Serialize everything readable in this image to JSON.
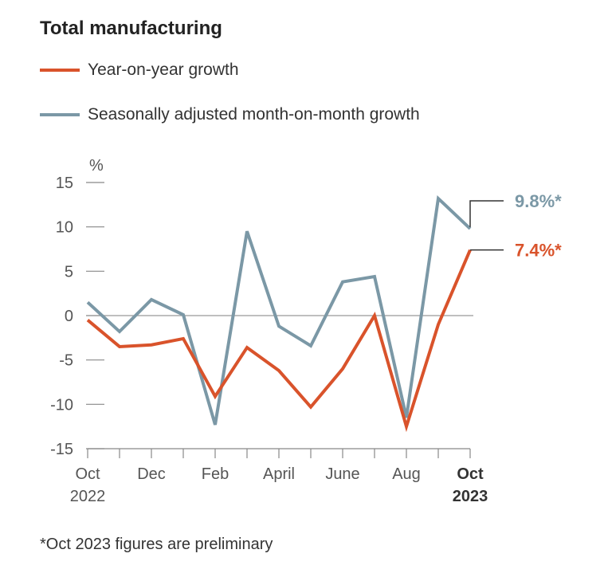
{
  "title": "Total manufacturing",
  "footnote": "*Oct 2023 figures are preliminary",
  "legend": [
    {
      "label": "Year-on-year growth",
      "color": "#d9532b"
    },
    {
      "label": "Seasonally adjusted month-on-month growth",
      "color": "#7b98a6"
    }
  ],
  "chart_data": {
    "type": "line",
    "ylabel": "%",
    "ylim": [
      -15,
      15
    ],
    "yticks": [
      15,
      10,
      5,
      0,
      -5,
      -10,
      -15
    ],
    "x": [
      "Oct 2022",
      "Nov 2022",
      "Dec 2022",
      "Jan 2023",
      "Feb 2023",
      "Mar 2023",
      "Apr 2023",
      "May 2023",
      "Jun 2023",
      "Jul 2023",
      "Aug 2023",
      "Sep 2023",
      "Oct 2023"
    ],
    "xticks": [
      {
        "index": 0,
        "label": "Oct",
        "sub": "2022",
        "bold": false
      },
      {
        "index": 2,
        "label": "Dec",
        "sub": "",
        "bold": false
      },
      {
        "index": 4,
        "label": "Feb",
        "sub": "",
        "bold": false
      },
      {
        "index": 6,
        "label": "April",
        "sub": "",
        "bold": false
      },
      {
        "index": 8,
        "label": "June",
        "sub": "",
        "bold": false
      },
      {
        "index": 10,
        "label": "Aug",
        "sub": "",
        "bold": false
      },
      {
        "index": 12,
        "label": "Oct",
        "sub": "2023",
        "bold": true
      }
    ],
    "series": [
      {
        "name": "Year-on-year growth",
        "color": "#d9532b",
        "values": [
          -0.5,
          -3.5,
          -3.3,
          -2.6,
          -9.1,
          -3.6,
          -6.2,
          -10.3,
          -6.0,
          0.0,
          -12.5,
          -1.0,
          7.4
        ],
        "end_label": "7.4%*"
      },
      {
        "name": "Seasonally adjusted month-on-month growth",
        "color": "#7b98a6",
        "values": [
          1.5,
          -1.8,
          1.8,
          0.1,
          -12.3,
          9.5,
          -1.2,
          -3.4,
          3.8,
          4.4,
          -11.5,
          13.2,
          9.8
        ],
        "end_label": "9.8%*"
      }
    ]
  }
}
